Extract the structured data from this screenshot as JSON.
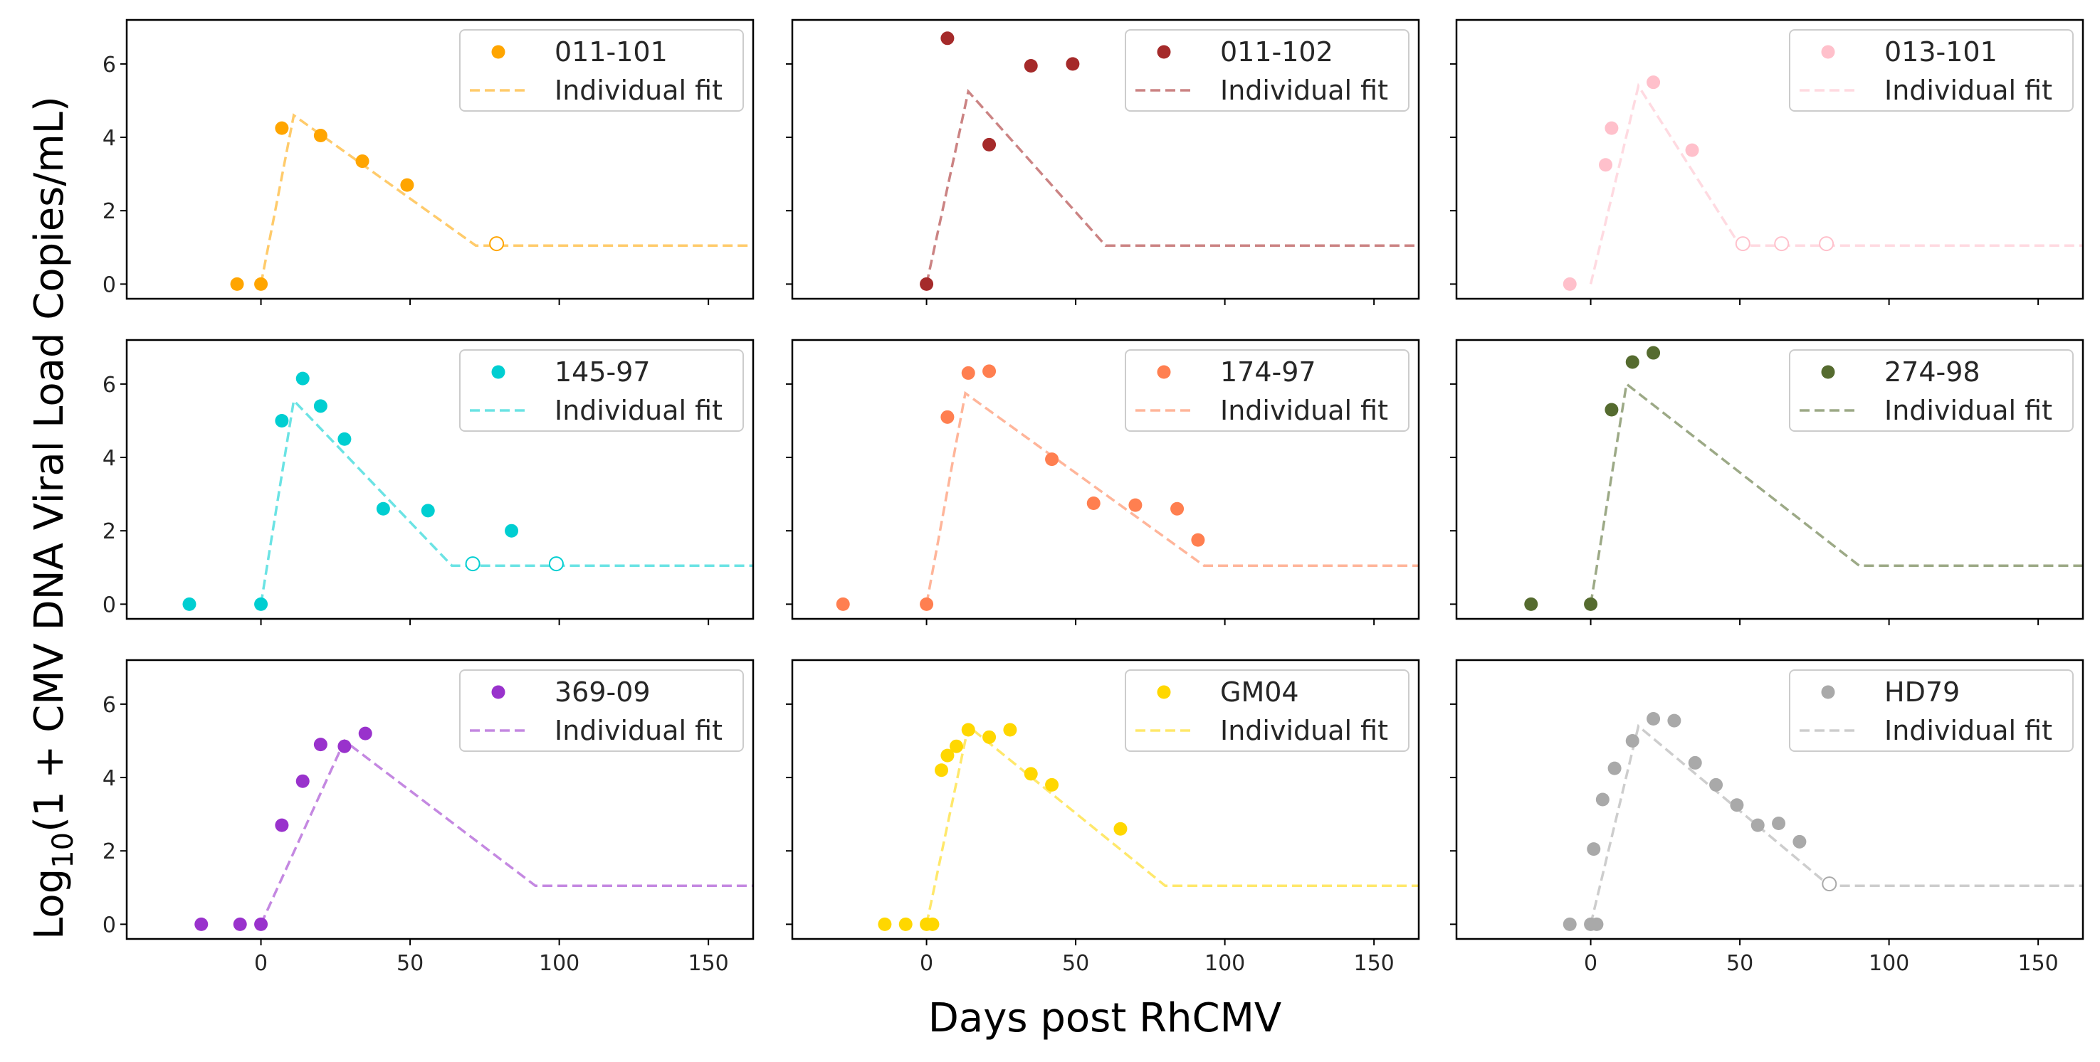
{
  "figure": {
    "xlabel": "Days post RhCMV",
    "ylabel_prefix": "Log",
    "ylabel_sub": "10",
    "ylabel_rest": "(1 + CMV DNA Viral Load Copies/mL)"
  },
  "chart_data": [
    {
      "type": "scatter",
      "panel": "011-101",
      "color": "#FFA500",
      "legend": [
        "011-101",
        "Individual fit"
      ],
      "legend_position": "top-right",
      "xlim": [
        -45,
        165
      ],
      "ylim": [
        -0.4,
        7.2
      ],
      "xticks": [
        0,
        50,
        100,
        150
      ],
      "yticks": [
        0,
        2,
        4,
        6
      ],
      "x_ticklabels_shown": false,
      "y_ticklabels_shown": true,
      "points": [
        [
          -8,
          0
        ],
        [
          0,
          0
        ],
        [
          7,
          4.25
        ],
        [
          20,
          4.05
        ],
        [
          34,
          3.35
        ],
        [
          49,
          2.7
        ]
      ],
      "censored_points": [
        [
          79,
          1.1
        ]
      ],
      "fit": [
        [
          0,
          0
        ],
        [
          11,
          4.6
        ],
        [
          72,
          1.05
        ],
        [
          165,
          1.05
        ]
      ]
    },
    {
      "type": "scatter",
      "panel": "011-102",
      "color": "#A52A2A",
      "legend": [
        "011-102",
        "Individual fit"
      ],
      "legend_position": "top-right",
      "xlim": [
        -45,
        165
      ],
      "ylim": [
        -0.4,
        7.2
      ],
      "xticks": [
        0,
        50,
        100,
        150
      ],
      "yticks": [
        0,
        2,
        4,
        6
      ],
      "x_ticklabels_shown": false,
      "y_ticklabels_shown": false,
      "points": [
        [
          0,
          0
        ],
        [
          7,
          6.7
        ],
        [
          21,
          3.8
        ],
        [
          35,
          5.95
        ],
        [
          49,
          6.0
        ]
      ],
      "censored_points": [],
      "fit": [
        [
          0,
          0
        ],
        [
          14,
          5.25
        ],
        [
          60,
          1.05
        ],
        [
          165,
          1.05
        ]
      ]
    },
    {
      "type": "scatter",
      "panel": "013-101",
      "color": "#FFC0CB",
      "legend": [
        "013-101",
        "Individual fit"
      ],
      "legend_position": "top-right",
      "xlim": [
        -45,
        165
      ],
      "ylim": [
        -0.4,
        7.2
      ],
      "xticks": [
        0,
        50,
        100,
        150
      ],
      "yticks": [
        0,
        2,
        4,
        6
      ],
      "x_ticklabels_shown": false,
      "y_ticklabels_shown": false,
      "points": [
        [
          -7,
          0
        ],
        [
          5,
          3.25
        ],
        [
          7,
          4.25
        ],
        [
          21,
          5.5
        ],
        [
          34,
          3.65
        ]
      ],
      "censored_points": [
        [
          51,
          1.1
        ],
        [
          64,
          1.1
        ],
        [
          79,
          1.1
        ]
      ],
      "fit": [
        [
          0,
          0
        ],
        [
          16,
          5.4
        ],
        [
          50,
          1.05
        ],
        [
          165,
          1.05
        ]
      ]
    },
    {
      "type": "scatter",
      "panel": "145-97",
      "color": "#00CED1",
      "legend": [
        "145-97",
        "Individual fit"
      ],
      "legend_position": "top-right",
      "xlim": [
        -45,
        165
      ],
      "ylim": [
        -0.4,
        7.2
      ],
      "xticks": [
        0,
        50,
        100,
        150
      ],
      "yticks": [
        0,
        2,
        4,
        6
      ],
      "x_ticklabels_shown": false,
      "y_ticklabels_shown": true,
      "points": [
        [
          -24,
          0
        ],
        [
          0,
          0
        ],
        [
          7,
          5.0
        ],
        [
          14,
          6.15
        ],
        [
          20,
          5.4
        ],
        [
          28,
          4.5
        ],
        [
          41,
          2.6
        ],
        [
          56,
          2.55
        ],
        [
          84,
          2.0
        ]
      ],
      "censored_points": [
        [
          71,
          1.1
        ],
        [
          99,
          1.1
        ]
      ],
      "fit": [
        [
          0,
          0
        ],
        [
          11,
          5.55
        ],
        [
          64,
          1.05
        ],
        [
          165,
          1.05
        ]
      ]
    },
    {
      "type": "scatter",
      "panel": "174-97",
      "color": "#FF7F50",
      "legend": [
        "174-97",
        "Individual fit"
      ],
      "legend_position": "top-right",
      "xlim": [
        -45,
        165
      ],
      "ylim": [
        -0.4,
        7.2
      ],
      "xticks": [
        0,
        50,
        100,
        150
      ],
      "yticks": [
        0,
        2,
        4,
        6
      ],
      "x_ticklabels_shown": false,
      "y_ticklabels_shown": false,
      "points": [
        [
          -28,
          0
        ],
        [
          0,
          0
        ],
        [
          7,
          5.1
        ],
        [
          14,
          6.3
        ],
        [
          21,
          6.35
        ],
        [
          42,
          3.95
        ],
        [
          56,
          2.75
        ],
        [
          70,
          2.7
        ],
        [
          84,
          2.6
        ],
        [
          91,
          1.75
        ]
      ],
      "censored_points": [],
      "fit": [
        [
          0,
          0
        ],
        [
          13,
          5.75
        ],
        [
          93,
          1.05
        ],
        [
          165,
          1.05
        ]
      ]
    },
    {
      "type": "scatter",
      "panel": "274-98",
      "color": "#556B2F",
      "legend": [
        "274-98",
        "Individual fit"
      ],
      "legend_position": "top-right",
      "xlim": [
        -45,
        165
      ],
      "ylim": [
        -0.4,
        7.2
      ],
      "xticks": [
        0,
        50,
        100,
        150
      ],
      "yticks": [
        0,
        2,
        4,
        6
      ],
      "x_ticklabels_shown": false,
      "y_ticklabels_shown": false,
      "points": [
        [
          -20,
          0
        ],
        [
          0,
          0
        ],
        [
          7,
          5.3
        ],
        [
          14,
          6.6
        ],
        [
          21,
          6.85
        ]
      ],
      "censored_points": [],
      "fit": [
        [
          0,
          0
        ],
        [
          12,
          6.0
        ],
        [
          90,
          1.05
        ],
        [
          165,
          1.05
        ]
      ]
    },
    {
      "type": "scatter",
      "panel": "369-09",
      "color": "#9932CC",
      "legend": [
        "369-09",
        "Individual fit"
      ],
      "legend_position": "top-right",
      "xlim": [
        -45,
        165
      ],
      "ylim": [
        -0.4,
        7.2
      ],
      "xticks": [
        0,
        50,
        100,
        150
      ],
      "yticks": [
        0,
        2,
        4,
        6
      ],
      "x_ticklabels_shown": true,
      "y_ticklabels_shown": true,
      "points": [
        [
          -20,
          0
        ],
        [
          -7,
          0
        ],
        [
          0,
          0
        ],
        [
          7,
          2.7
        ],
        [
          14,
          3.9
        ],
        [
          20,
          4.9
        ],
        [
          28,
          4.85
        ],
        [
          35,
          5.2
        ]
      ],
      "censored_points": [],
      "fit": [
        [
          0,
          0
        ],
        [
          28,
          5.0
        ],
        [
          92,
          1.05
        ],
        [
          165,
          1.05
        ]
      ]
    },
    {
      "type": "scatter",
      "panel": "GM04",
      "color": "#FFD700",
      "legend": [
        "GM04",
        "Individual fit"
      ],
      "legend_position": "top-right",
      "xlim": [
        -45,
        165
      ],
      "ylim": [
        -0.4,
        7.2
      ],
      "xticks": [
        0,
        50,
        100,
        150
      ],
      "yticks": [
        0,
        2,
        4,
        6
      ],
      "x_ticklabels_shown": true,
      "y_ticklabels_shown": false,
      "points": [
        [
          -14,
          0
        ],
        [
          -7,
          0
        ],
        [
          0,
          0
        ],
        [
          2,
          0
        ],
        [
          5,
          4.2
        ],
        [
          7,
          4.6
        ],
        [
          10,
          4.85
        ],
        [
          14,
          5.3
        ],
        [
          21,
          5.1
        ],
        [
          28,
          5.3
        ],
        [
          35,
          4.1
        ],
        [
          42,
          3.8
        ],
        [
          65,
          2.6
        ]
      ],
      "censored_points": [],
      "fit": [
        [
          0,
          0
        ],
        [
          14,
          5.4
        ],
        [
          80,
          1.05
        ],
        [
          165,
          1.05
        ]
      ]
    },
    {
      "type": "scatter",
      "panel": "HD79",
      "color": "#A9A9A9",
      "legend": [
        "HD79",
        "Individual fit"
      ],
      "legend_position": "top-right",
      "xlim": [
        -45,
        165
      ],
      "ylim": [
        -0.4,
        7.2
      ],
      "xticks": [
        0,
        50,
        100,
        150
      ],
      "yticks": [
        0,
        2,
        4,
        6
      ],
      "x_ticklabels_shown": true,
      "y_ticklabels_shown": false,
      "points": [
        [
          -7,
          0
        ],
        [
          0,
          0
        ],
        [
          2,
          0
        ],
        [
          1,
          2.05
        ],
        [
          4,
          3.4
        ],
        [
          8,
          4.25
        ],
        [
          14,
          5.0
        ],
        [
          21,
          5.6
        ],
        [
          28,
          5.55
        ],
        [
          35,
          4.4
        ],
        [
          42,
          3.8
        ],
        [
          49,
          3.25
        ],
        [
          56,
          2.7
        ],
        [
          63,
          2.75
        ],
        [
          70,
          2.25
        ]
      ],
      "censored_points": [
        [
          80,
          1.1
        ]
      ],
      "fit": [
        [
          0,
          0
        ],
        [
          16,
          5.4
        ],
        [
          80,
          1.05
        ],
        [
          165,
          1.05
        ]
      ]
    }
  ]
}
